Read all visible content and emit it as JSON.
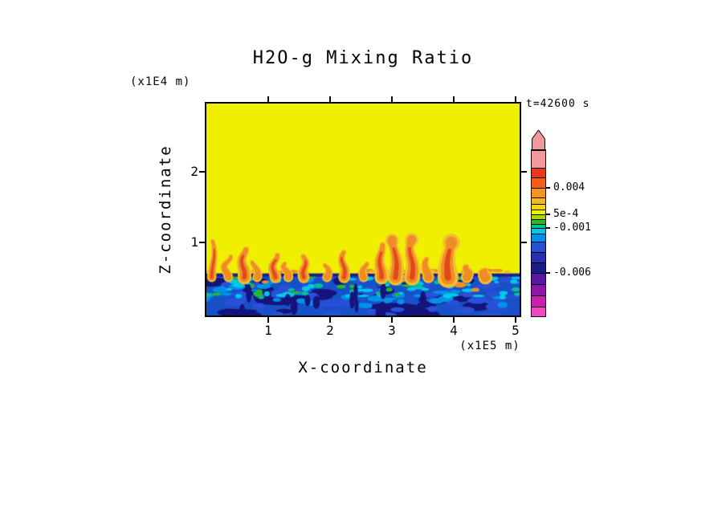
{
  "title": "H2O-g Mixing Ratio",
  "annotations": {
    "time": "t=42600 s",
    "y_unit": "(x1E4 m)",
    "x_unit": "(x1E5 m)"
  },
  "axes": {
    "x_label": "X-coordinate",
    "y_label": "Z-coordinate"
  },
  "chart_data": {
    "type": "heatmap",
    "title": "H2O-g Mixing Ratio",
    "xlabel": "X-coordinate",
    "ylabel": "Z-coordinate",
    "x_unit": "x1E5 m",
    "y_unit": "x1E4 m",
    "time_annotation": "t=42600 s",
    "xlim": [
      0,
      5.1
    ],
    "ylim": [
      0,
      3.05
    ],
    "x_ticks": [
      1,
      2,
      3,
      4,
      5
    ],
    "y_ticks": [
      1,
      2
    ],
    "grid": false,
    "legend_position": "right-colorbar",
    "description": "Mostly uniform yellow mixing-ratio field aloft; turbulent blue/cyan/green boundary layer below z~0.55e4 m capped by a dark navy inversion line; orange/red convective plumes rise from the layer top up to z~1e4 m.",
    "colorbar": {
      "arrow_color": "#f2989c",
      "labels": [
        "0.004",
        "5e-4",
        "-0.001",
        "-0.006"
      ],
      "segments": [
        {
          "h": 22,
          "color": "#f2989c"
        },
        {
          "h": 12,
          "color": "#e83820"
        },
        {
          "h": 13,
          "color": "#f06018"
        },
        {
          "h": 12,
          "color": "#f29422",
          "label": "0.004"
        },
        {
          "h": 8,
          "color": "#f2b822"
        },
        {
          "h": 7,
          "color": "#f0d800"
        },
        {
          "h": 6,
          "color": "#f0f000"
        },
        {
          "h": 6,
          "color": "#a8d800",
          "label": "5e-4"
        },
        {
          "h": 6,
          "color": "#28b828"
        },
        {
          "h": 5,
          "color": "#00c090"
        },
        {
          "h": 7,
          "color": "#00c8e8",
          "label": "-0.001"
        },
        {
          "h": 10,
          "color": "#0090e8"
        },
        {
          "h": 13,
          "color": "#2850d0"
        },
        {
          "h": 13,
          "color": "#2830b0"
        },
        {
          "h": 13,
          "color": "#1c1c84"
        },
        {
          "h": 14,
          "color": "#5a18a0",
          "label": "-0.006"
        },
        {
          "h": 14,
          "color": "#8c18a8"
        },
        {
          "h": 14,
          "color": "#c820b0"
        },
        {
          "h": 12,
          "color": "#f048c0"
        }
      ]
    },
    "field": {
      "background_color": "#f0ef00",
      "boundary_layer": {
        "top_z": 0.55,
        "base_color": "#1850c8",
        "cap_color": "#1c1c90",
        "seed": 7,
        "blobs": [
          {
            "color": "#14147c",
            "n": 40,
            "fy0": 0.15,
            "fy1": 1.0,
            "w0": 14,
            "w1": 44,
            "h0": 5,
            "h1": 12
          },
          {
            "color": "#2a50d8",
            "n": 55,
            "fy0": 0.0,
            "fy1": 1.0,
            "w0": 10,
            "w1": 30,
            "h0": 4,
            "h1": 10
          },
          {
            "color": "#0090e8",
            "n": 40,
            "fy0": 0.05,
            "fy1": 0.8,
            "w0": 8,
            "w1": 22,
            "h0": 3,
            "h1": 8
          },
          {
            "color": "#00c8e8",
            "n": 45,
            "fy0": 0.0,
            "fy1": 0.55,
            "w0": 6,
            "w1": 18,
            "h0": 3,
            "h1": 7
          },
          {
            "color": "#00c090",
            "n": 16,
            "fy0": 0.05,
            "fy1": 0.6,
            "w0": 5,
            "w1": 12,
            "h0": 3,
            "h1": 6
          },
          {
            "color": "#28b828",
            "n": 18,
            "fy0": 0.0,
            "fy1": 0.5,
            "w0": 5,
            "w1": 14,
            "h0": 3,
            "h1": 6
          },
          {
            "color": "#14147c",
            "n": 14,
            "fy0": 0.35,
            "fy1": 1.0,
            "w0": 4,
            "w1": 9,
            "h0": 14,
            "h1": 26
          }
        ]
      },
      "surface_puffs": {
        "n": 26,
        "colors": [
          "#ef8f25",
          "#f2b828"
        ]
      },
      "plumes": [
        {
          "x": 0.1,
          "top_z": 1.02,
          "w": 4,
          "core": true
        },
        {
          "x": 0.33,
          "top_z": 0.8,
          "w": 4,
          "core": false
        },
        {
          "x": 0.6,
          "top_z": 0.9,
          "w": 6,
          "core": true
        },
        {
          "x": 0.8,
          "top_z": 0.72,
          "w": 4,
          "core": false
        },
        {
          "x": 1.1,
          "top_z": 0.82,
          "w": 5,
          "core": true
        },
        {
          "x": 1.3,
          "top_z": 0.7,
          "w": 4,
          "core": false
        },
        {
          "x": 1.58,
          "top_z": 0.8,
          "w": 5,
          "core": true
        },
        {
          "x": 1.95,
          "top_z": 0.68,
          "w": 4,
          "core": false
        },
        {
          "x": 2.22,
          "top_z": 0.86,
          "w": 5,
          "core": true
        },
        {
          "x": 2.55,
          "top_z": 0.7,
          "w": 4,
          "core": false
        },
        {
          "x": 2.82,
          "top_z": 0.96,
          "w": 6,
          "core": true
        },
        {
          "x": 3.05,
          "top_z": 1.03,
          "w": 7,
          "core": true
        },
        {
          "x": 3.32,
          "top_z": 1.04,
          "w": 7,
          "core": true
        },
        {
          "x": 3.58,
          "top_z": 0.76,
          "w": 5,
          "core": false
        },
        {
          "x": 3.92,
          "top_z": 1.0,
          "w": 9,
          "core": true
        },
        {
          "x": 4.22,
          "top_z": 0.66,
          "w": 5,
          "core": false
        },
        {
          "x": 4.5,
          "top_z": 0.6,
          "w": 6,
          "core": false
        }
      ],
      "warm_patches": [
        {
          "x": 4.1,
          "z": 0.4,
          "w": 16,
          "h": 7
        },
        {
          "x": 4.35,
          "z": 0.33,
          "w": 10,
          "h": 5
        },
        {
          "x": 3.15,
          "z": 0.46,
          "w": 9,
          "h": 5
        },
        {
          "x": 0.95,
          "z": 0.44,
          "w": 8,
          "h": 4
        }
      ]
    }
  }
}
